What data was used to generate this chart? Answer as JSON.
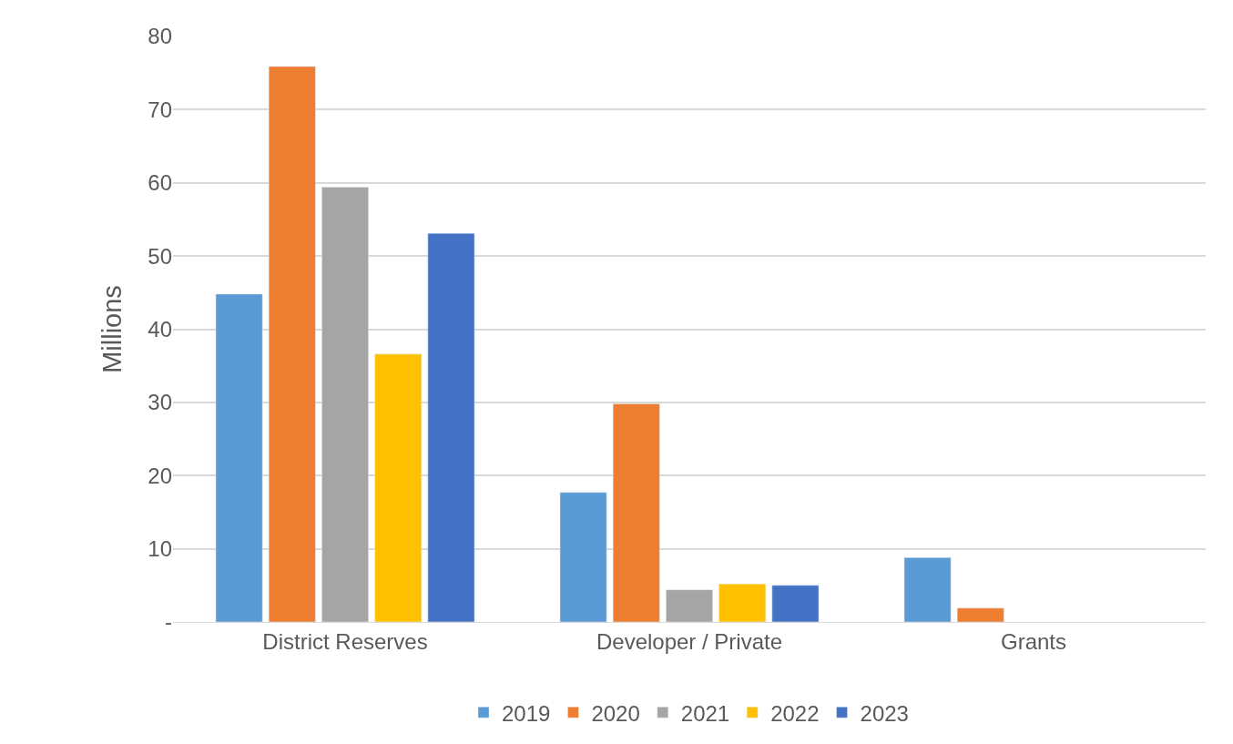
{
  "chart_data": {
    "type": "bar",
    "ylabel": "Millions",
    "categories": [
      "District Reserves",
      "Developer / Private",
      "Grants"
    ],
    "series": [
      {
        "name": "2019",
        "color": "#5b9bd5",
        "values": [
          44.8,
          17.7,
          8.8
        ]
      },
      {
        "name": "2020",
        "color": "#ed7d31",
        "values": [
          75.9,
          29.8,
          1.9
        ]
      },
      {
        "name": "2021",
        "color": "#a5a5a5",
        "values": [
          59.4,
          4.4,
          null
        ]
      },
      {
        "name": "2022",
        "color": "#ffc000",
        "values": [
          36.6,
          5.2,
          null
        ]
      },
      {
        "name": "2023",
        "color": "#4472c4",
        "values": [
          53.1,
          5.0,
          null
        ]
      }
    ],
    "ylim": [
      0,
      80
    ],
    "yticks": [
      {
        "value": 0,
        "label": "-"
      },
      10,
      20,
      30,
      40,
      50,
      60,
      70,
      80
    ],
    "grid": "y",
    "legend": "bottom"
  }
}
